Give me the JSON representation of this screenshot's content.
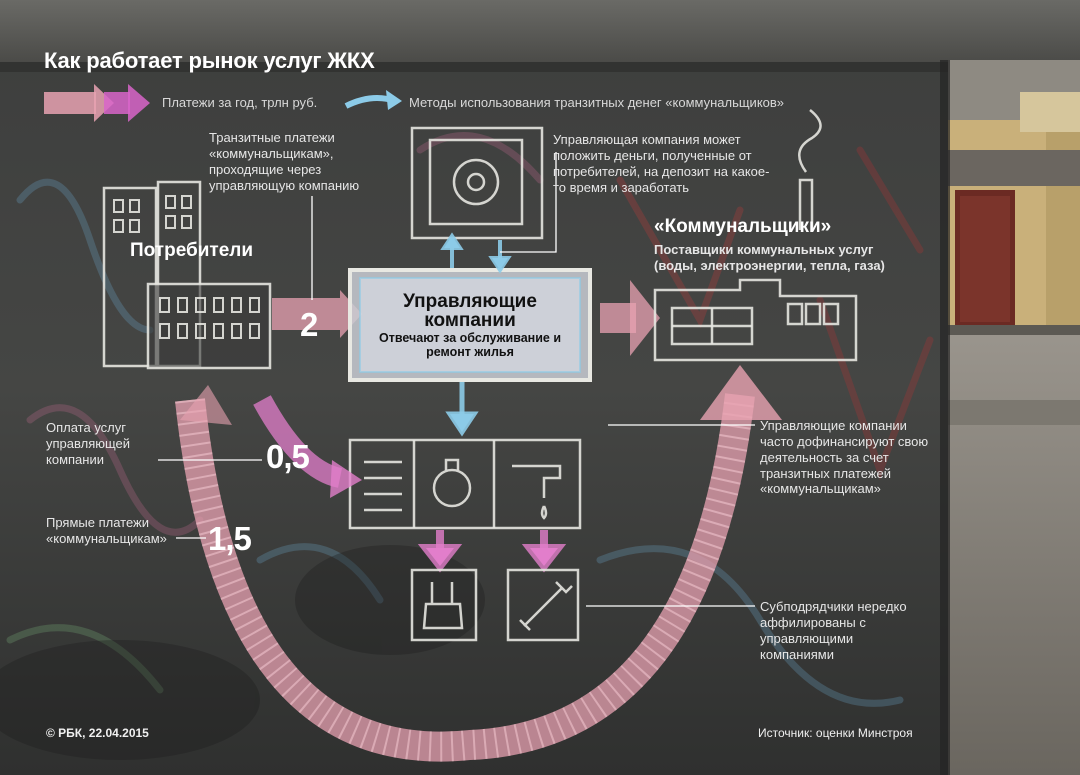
{
  "title": "Как работает рынок услуг ЖКХ",
  "legend": {
    "payments": "Платежи за год, трлн руб.",
    "methods": "Методы использования транзитных денег «коммунальщиков»"
  },
  "notes": {
    "transit": "Транзитные платежи «коммунальщикам», проходящие через управляющую компанию",
    "deposit": "Управляющая компания может положить деньги, полученные от потребителей, на депозит на какое-то время и заработать",
    "utilities_desc": "Поставщики коммунальных услуг (воды, электроэнергии, тепла, газа)",
    "management_fee": "Оплата услуг управляющей компании",
    "direct": "Прямые платежи «коммунальщикам»",
    "cofinance": "Управляющие компании часто дофинансируют свою деятельность за счет транзитных платежей «коммунальщикам»",
    "subcontractors": "Субподрядчики нередко аффилированы с управляющими компаниями"
  },
  "labels": {
    "consumers": "Потребители",
    "utilities": "«Коммунальщики»",
    "mc_title": "Управляющие компании",
    "mc_sub": "Отвечают за обслуживание и ремонт жилья"
  },
  "values": {
    "transit": "2",
    "management_fee": "0,5",
    "direct": "1,5"
  },
  "footer": {
    "copyright": "© РБК, 22.04.2015",
    "source": "Источник: оценки Минстроя"
  },
  "colors": {
    "pink": "#e89aa8",
    "magenta": "#d865c9",
    "blue": "#8ccbe8",
    "chalk": "#e6e6e0"
  }
}
